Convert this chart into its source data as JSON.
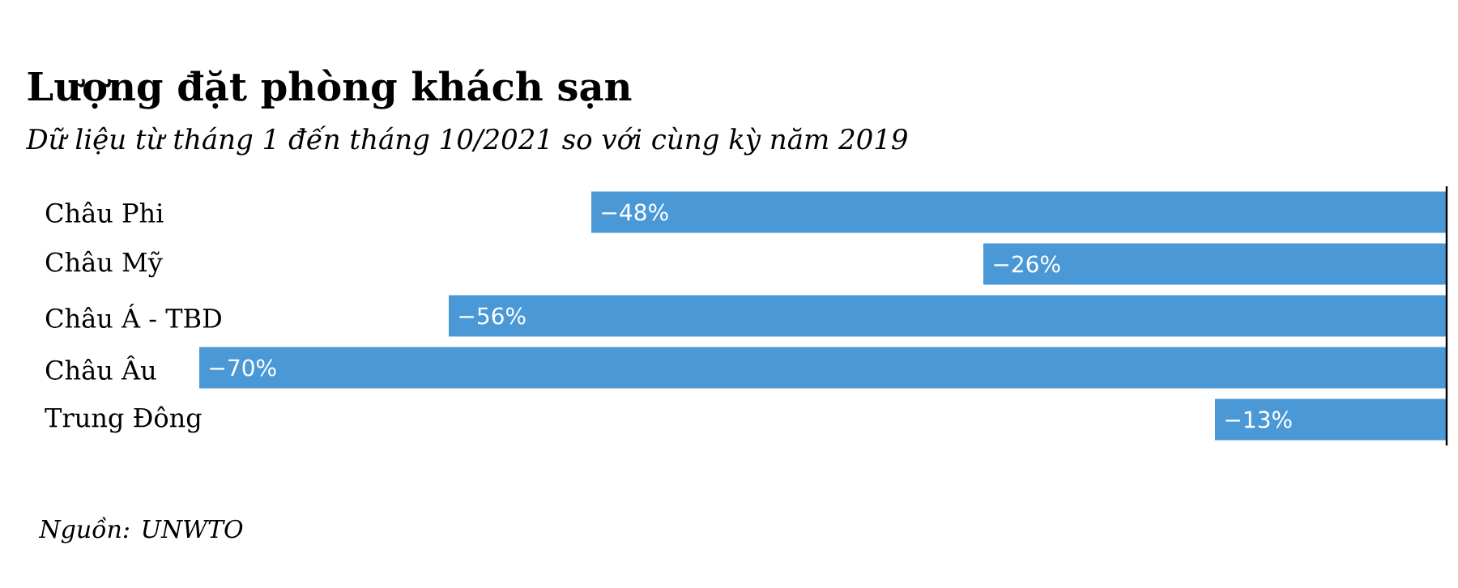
{
  "chart_data": {
    "type": "bar",
    "orientation": "horizontal",
    "title": "Lượng đặt phòng khách sạn",
    "subtitle": "Dữ liệu từ tháng 1 đến tháng 10/2021 so với cùng kỳ năm 2019",
    "categories": [
      "Châu Phi",
      "Châu Mỹ",
      "Châu Á - TBD",
      "Châu Âu",
      "Trung Đông"
    ],
    "values": [
      -48,
      -26,
      -56,
      -70,
      -13
    ],
    "value_labels": [
      "−48%",
      "−26%",
      "−56%",
      "−70%",
      "−13%"
    ],
    "color": "#4a98d6",
    "xlim": [
      -70,
      0
    ],
    "annotations": [
      "Nguồn: UNWTO"
    ]
  }
}
